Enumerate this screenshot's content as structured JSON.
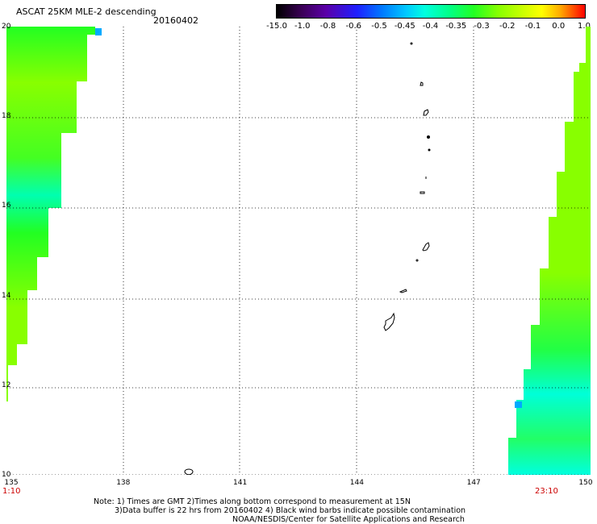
{
  "title": "ASCAT 25KM MLE-2 descending",
  "date": "20160402",
  "colorbar": {
    "labels": [
      "-15.0",
      "-1.0",
      "-0.8",
      "-0.6",
      "-0.5",
      "-0.45",
      "-0.4",
      "-0.35",
      "-0.3",
      "-0.2",
      "-0.1",
      "0.0",
      "1.0"
    ]
  },
  "axes": {
    "lat_labels": [
      "20",
      "18",
      "16",
      "14",
      "12",
      "10"
    ],
    "lon_labels": [
      "135",
      "138",
      "141",
      "144",
      "147",
      "150"
    ],
    "lat_range": [
      10,
      20
    ],
    "lon_range": [
      135,
      150
    ]
  },
  "time_left": "1:10",
  "time_right": "23:10",
  "notes": {
    "line1": "Note: 1) Times are GMT 2)Times along bottom correspond to measurement at 15N",
    "line2": "3)Data buffer is 22 hrs from 20160402 4) Black wind barbs indicate possible contamination",
    "line3": "NOAA/NESDIS/Center for Satellite Applications and Research"
  },
  "colors": {
    "swath_green": "#88ff00",
    "swath_bright_green": "#22ff22",
    "swath_cyan": "#00ffe0",
    "timestamp_red": "#cc0000"
  }
}
